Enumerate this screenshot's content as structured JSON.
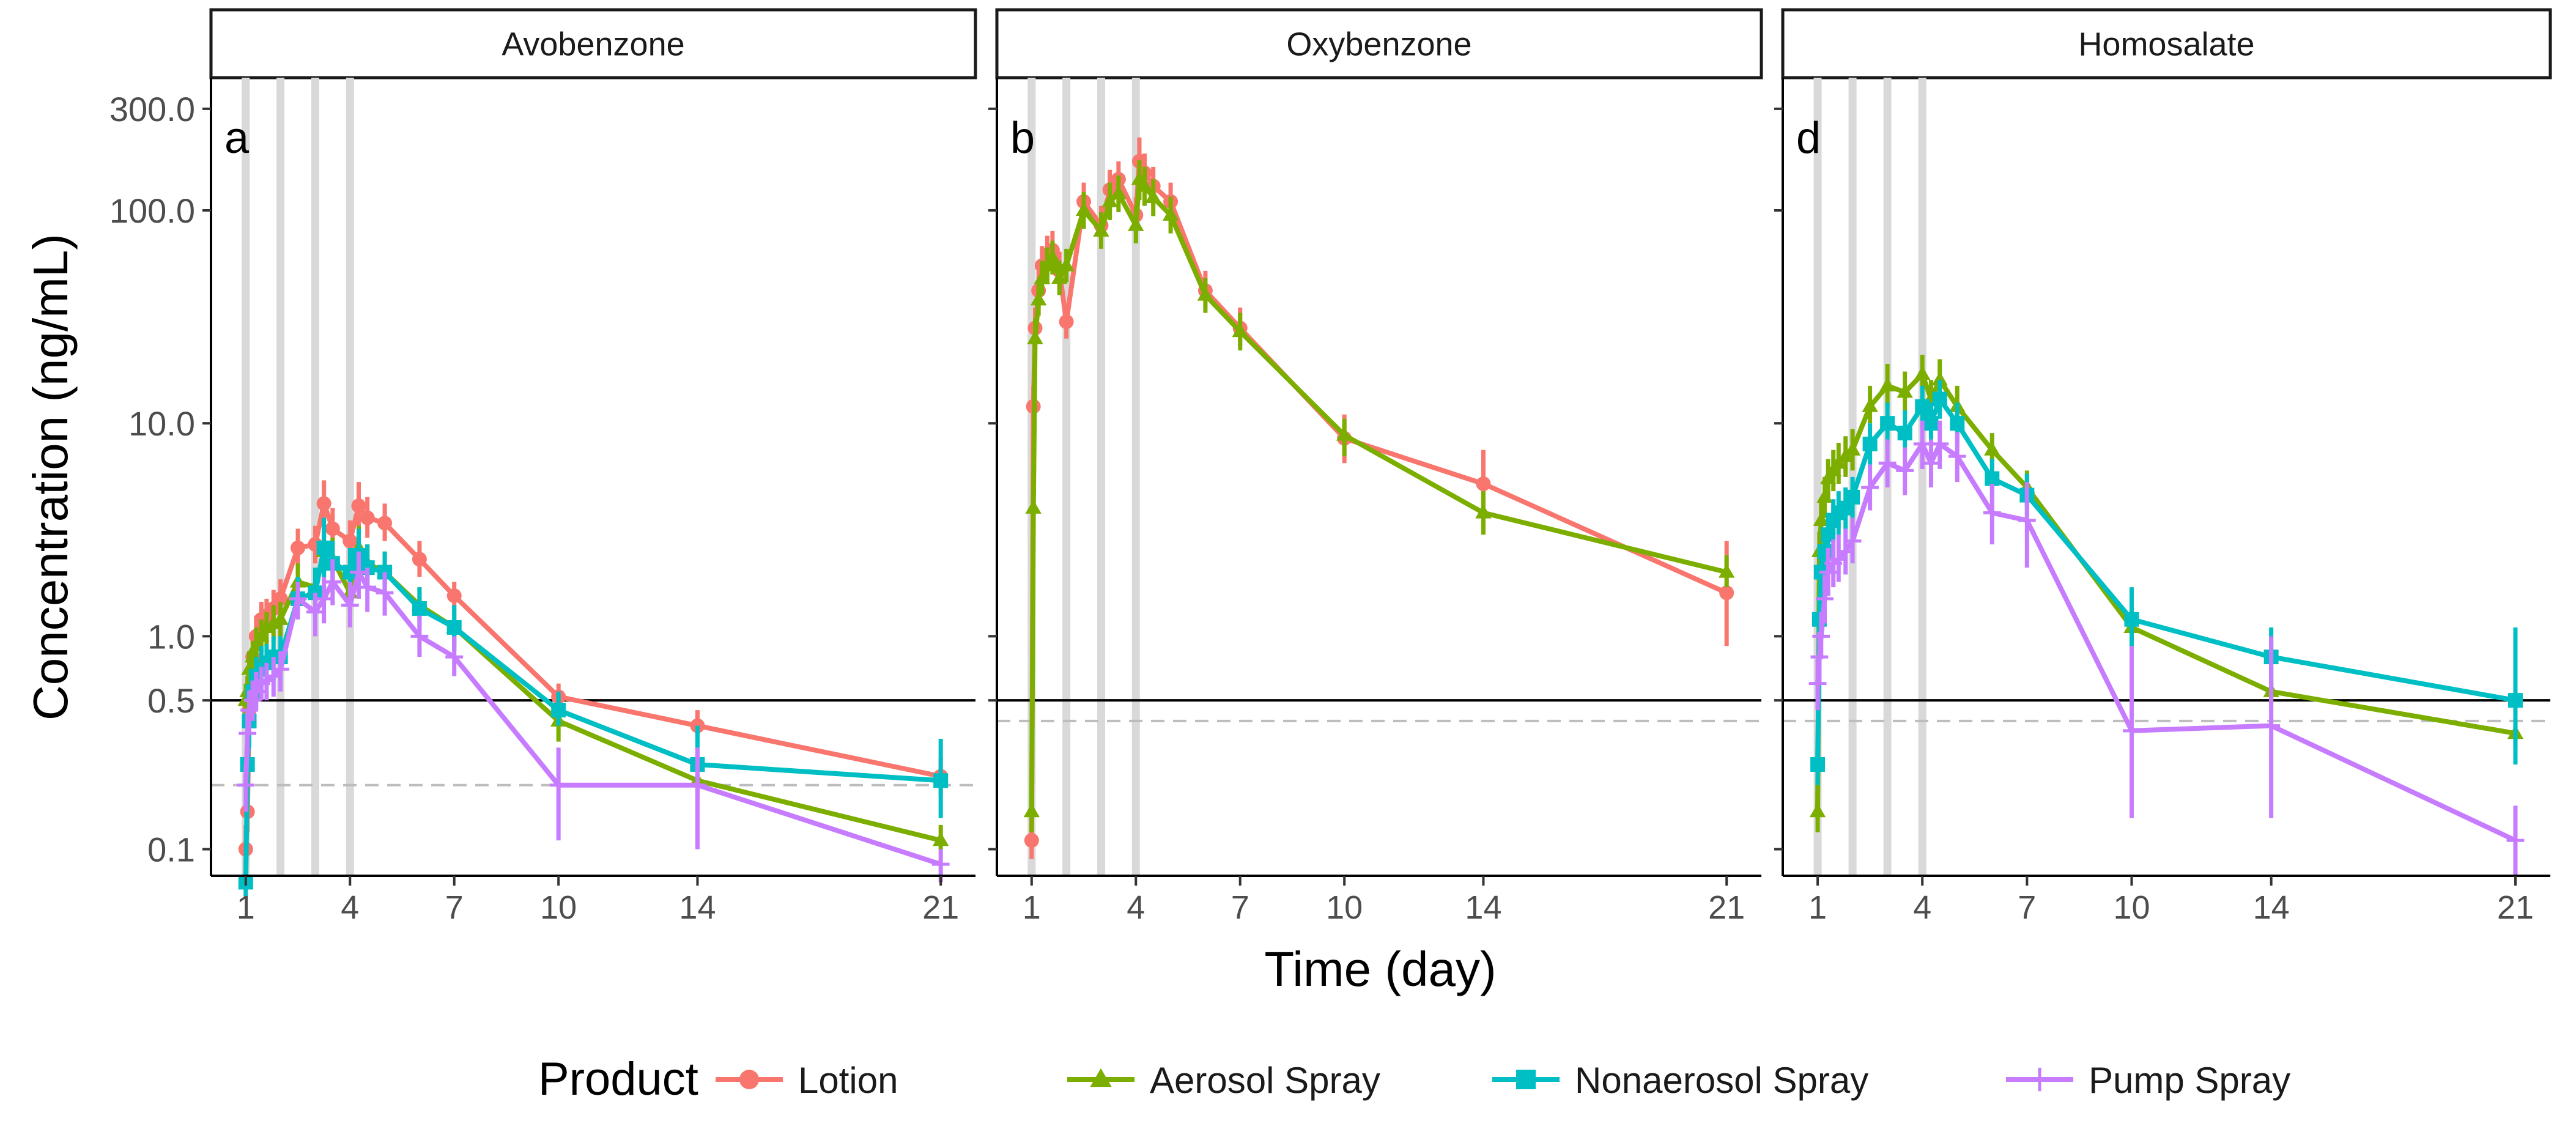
{
  "chart_data": {
    "type": "line",
    "ylabel": "Concentration (ng/mL)",
    "xlabel": "Time (day)",
    "yscale": "log",
    "ylim": [
      0.075,
      420
    ],
    "xlim": [
      0,
      22
    ],
    "yticks": [
      0.1,
      0.5,
      1.0,
      10.0,
      100.0,
      300.0
    ],
    "ytick_labels": [
      "0.1",
      "0.5",
      "1.0",
      "10.0",
      "100.0",
      "300.0"
    ],
    "xticks": [
      1,
      4,
      7,
      10,
      14,
      21
    ],
    "xtick_labels": [
      "1",
      "4",
      "7",
      "10",
      "14",
      "21"
    ],
    "grid": false,
    "legend": {
      "title": "Product",
      "position": "bottom",
      "entries": [
        {
          "name": "Lotion",
          "color": "#F8766D",
          "marker": "circle"
        },
        {
          "name": "Aerosol Spray",
          "color": "#7CAE00",
          "marker": "triangle"
        },
        {
          "name": "Nonaerosol Spray",
          "color": "#00BFC4",
          "marker": "square"
        },
        {
          "name": "Pump Spray",
          "color": "#C77CFF",
          "marker": "plus"
        }
      ]
    },
    "dose_days": [
      1,
      2,
      3,
      4
    ],
    "panels": [
      {
        "strip": "Avobenzone",
        "tag": "a",
        "ref_solid": 0.5,
        "ref_dashed": 0.2,
        "series": [
          {
            "name": "Lotion",
            "x": [
              1,
              1.05,
              1.1,
              1.2,
              1.3,
              1.45,
              1.6,
              1.8,
              2,
              2.5,
              3,
              3.25,
              3.5,
              4,
              4.25,
              4.5,
              5,
              6,
              7,
              10,
              14,
              21
            ],
            "y": [
              0.1,
              0.15,
              0.45,
              0.8,
              1.0,
              1.2,
              1.25,
              1.35,
              1.5,
              2.6,
              2.7,
              4.2,
              3.2,
              2.8,
              4.1,
              3.6,
              3.4,
              2.3,
              1.55,
              0.52,
              0.38,
              0.22
            ],
            "err_lo": [
              0.08,
              0.12,
              0.35,
              0.6,
              0.8,
              1.0,
              1.05,
              1.1,
              1.2,
              2.1,
              2.2,
              3.2,
              2.5,
              2.2,
              3.1,
              2.9,
              2.8,
              1.9,
              1.35,
              0.45,
              0.32,
              0.18
            ],
            "err_hi": [
              0.13,
              0.2,
              0.6,
              1.0,
              1.25,
              1.45,
              1.5,
              1.65,
              1.85,
              3.2,
              3.3,
              5.4,
              4.0,
              3.5,
              5.3,
              4.5,
              4.2,
              2.8,
              1.8,
              0.6,
              0.45,
              0.27
            ]
          },
          {
            "name": "Aerosol Spray",
            "x": [
              1,
              1.05,
              1.1,
              1.2,
              1.3,
              1.45,
              1.6,
              1.8,
              2,
              2.5,
              3,
              3.25,
              3.5,
              4,
              4.25,
              4.5,
              5,
              6,
              7,
              10,
              14,
              21
            ],
            "y": [
              0.5,
              0.55,
              0.7,
              0.8,
              0.9,
              1.0,
              1.1,
              1.15,
              1.2,
              1.8,
              1.7,
              2.5,
              2.3,
              1.6,
              2.6,
              2.2,
              2.0,
              1.4,
              1.1,
              0.4,
              0.21,
              0.11
            ],
            "err_lo": [
              0.4,
              0.45,
              0.55,
              0.65,
              0.7,
              0.8,
              0.9,
              0.95,
              1.0,
              1.5,
              1.4,
              1.9,
              1.8,
              1.3,
              2.0,
              1.8,
              1.6,
              1.2,
              0.9,
              0.32,
              0.17,
              0.1
            ],
            "err_hi": [
              0.6,
              0.65,
              0.85,
              0.95,
              1.1,
              1.2,
              1.3,
              1.4,
              1.45,
              2.2,
              2.1,
              3.2,
              2.9,
              1.95,
              3.3,
              2.7,
              2.5,
              1.7,
              1.35,
              0.5,
              0.26,
              0.13
            ]
          },
          {
            "name": "Nonaerosol Spray",
            "x": [
              1,
              1.05,
              1.1,
              1.2,
              1.3,
              1.45,
              1.6,
              1.8,
              2,
              2.5,
              3,
              3.25,
              3.5,
              4,
              4.25,
              4.5,
              5,
              6,
              7,
              10,
              14,
              21
            ],
            "y": [
              0.07,
              0.25,
              0.4,
              0.55,
              0.65,
              0.7,
              0.75,
              0.8,
              0.8,
              1.5,
              1.6,
              2.6,
              2.2,
              2.0,
              2.4,
              2.1,
              2.0,
              1.35,
              1.1,
              0.45,
              0.25,
              0.21
            ],
            "err_lo": [
              0.06,
              0.2,
              0.3,
              0.42,
              0.5,
              0.55,
              0.6,
              0.62,
              0.62,
              1.2,
              1.2,
              1.9,
              1.7,
              1.5,
              1.8,
              1.7,
              1.6,
              1.1,
              0.85,
              0.38,
              0.19,
              0.14
            ],
            "err_hi": [
              0.09,
              0.3,
              0.5,
              0.7,
              0.8,
              0.9,
              0.92,
              1.0,
              1.0,
              1.9,
              2.1,
              3.6,
              2.8,
              2.6,
              3.2,
              2.7,
              2.5,
              1.7,
              1.4,
              0.55,
              0.38,
              0.33
            ]
          },
          {
            "name": "Pump Spray",
            "x": [
              1,
              1.05,
              1.1,
              1.2,
              1.3,
              1.45,
              1.6,
              1.8,
              2,
              2.5,
              3,
              3.25,
              3.5,
              4,
              4.25,
              4.5,
              5,
              6,
              7,
              10,
              14,
              21
            ],
            "y": [
              0.2,
              0.35,
              0.45,
              0.5,
              0.55,
              0.6,
              0.62,
              0.65,
              0.7,
              1.5,
              1.3,
              1.5,
              1.8,
              1.4,
              2.0,
              1.7,
              1.6,
              1.0,
              0.8,
              0.2,
              0.2,
              0.085
            ],
            "err_lo": [
              0.15,
              0.28,
              0.35,
              0.4,
              0.45,
              0.5,
              0.5,
              0.52,
              0.55,
              1.2,
              1.0,
              1.15,
              1.4,
              1.1,
              1.5,
              1.3,
              1.25,
              0.8,
              0.65,
              0.11,
              0.1,
              0.07
            ],
            "err_hi": [
              0.25,
              0.45,
              0.55,
              0.62,
              0.68,
              0.72,
              0.75,
              0.8,
              0.85,
              1.8,
              1.6,
              1.9,
              2.3,
              1.8,
              2.5,
              2.1,
              2.0,
              1.25,
              1.0,
              0.3,
              0.3,
              0.1
            ]
          }
        ]
      },
      {
        "strip": "Oxybenzone",
        "tag": "b",
        "ref_solid": 0.5,
        "ref_dashed": 0.4,
        "series": [
          {
            "name": "Lotion",
            "x": [
              1,
              1.05,
              1.1,
              1.2,
              1.3,
              1.45,
              1.6,
              1.8,
              2,
              2.5,
              3,
              3.25,
              3.5,
              4,
              4.1,
              4.25,
              4.5,
              5,
              6,
              7,
              10,
              14,
              21
            ],
            "y": [
              0.11,
              12,
              28,
              42,
              55,
              62,
              65,
              52,
              30,
              110,
              85,
              125,
              140,
              95,
              170,
              150,
              130,
              110,
              42,
              28,
              8.5,
              5.2,
              1.6
            ],
            "err_lo": [
              0.09,
              10,
              23,
              35,
              45,
              50,
              52,
              42,
              25,
              90,
              70,
              100,
              115,
              78,
              130,
              120,
              105,
              90,
              35,
              23,
              6.5,
              3.6,
              0.9
            ],
            "err_hi": [
              0.13,
              15,
              35,
              52,
              68,
              76,
              80,
              64,
              36,
              135,
              105,
              155,
              170,
              115,
              220,
              185,
              160,
              135,
              52,
              35,
              11,
              7.5,
              2.8
            ]
          },
          {
            "name": "Aerosol Spray",
            "x": [
              1,
              1.05,
              1.1,
              1.2,
              1.3,
              1.45,
              1.6,
              1.8,
              2,
              2.5,
              3,
              3.25,
              3.5,
              4,
              4.1,
              4.25,
              4.5,
              5,
              6,
              7,
              10,
              14,
              21
            ],
            "y": [
              0.15,
              4.0,
              25,
              38,
              48,
              55,
              60,
              48,
              55,
              100,
              80,
              110,
              120,
              85,
              140,
              130,
              115,
              95,
              40,
              27,
              8.8,
              3.8,
              2.0
            ],
            "err_lo": [
              0.12,
              3.0,
              20,
              32,
              40,
              45,
              50,
              40,
              46,
              82,
              66,
              90,
              98,
              70,
              112,
              105,
              94,
              78,
              33,
              22,
              7.0,
              3.0,
              1.7
            ],
            "err_hi": [
              0.18,
              5.0,
              31,
              46,
              58,
              67,
              72,
              58,
              66,
              122,
              98,
              135,
              146,
              104,
              172,
              160,
              140,
              116,
              48,
              33,
              10.5,
              4.8,
              2.4
            ]
          }
        ]
      },
      {
        "strip": "Homosalate",
        "tag": "d",
        "ref_solid": 0.5,
        "ref_dashed": 0.4,
        "series": [
          {
            "name": "Aerosol Spray",
            "x": [
              1,
              1.05,
              1.1,
              1.2,
              1.3,
              1.45,
              1.6,
              1.8,
              2,
              2.5,
              3,
              3.5,
              4,
              4.25,
              4.5,
              5,
              6,
              7,
              10,
              14,
              21
            ],
            "y": [
              0.15,
              2.5,
              3.5,
              4.5,
              5.5,
              6.0,
              6.5,
              7.0,
              7.5,
              12,
              15,
              14,
              17,
              13,
              16,
              12,
              7.5,
              5.0,
              1.1,
              0.55,
              0.35
            ],
            "err_lo": [
              0.12,
              2.0,
              2.8,
              3.6,
              4.3,
              4.8,
              5.2,
              5.6,
              6.0,
              10,
              12,
              11,
              13,
              10.5,
              13,
              10,
              6.2,
              4.1,
              0.95,
              0.48,
              0.3
            ],
            "err_hi": [
              0.18,
              3.1,
              4.4,
              5.6,
              6.8,
              7.5,
              8.1,
              8.7,
              9.4,
              15,
              19,
              17.5,
              21,
              16,
              20,
              15,
              9.0,
              6.0,
              1.3,
              0.62,
              0.4
            ]
          },
          {
            "name": "Nonaerosol Spray",
            "x": [
              1,
              1.05,
              1.1,
              1.2,
              1.3,
              1.45,
              1.6,
              1.8,
              2,
              2.5,
              3,
              3.5,
              4,
              4.25,
              4.5,
              5,
              6,
              7,
              10,
              14,
              21
            ],
            "y": [
              0.25,
              1.2,
              2.0,
              2.5,
              3.0,
              3.5,
              3.8,
              4.0,
              4.5,
              8.0,
              10,
              9.0,
              12,
              10,
              13,
              10,
              5.5,
              4.6,
              1.2,
              0.8,
              0.5
            ],
            "err_lo": [
              0.2,
              0.95,
              1.6,
              2.0,
              2.4,
              2.8,
              3.0,
              3.2,
              3.6,
              6.4,
              8.0,
              7.0,
              9.5,
              8.0,
              10.5,
              7.8,
              4.3,
              3.6,
              0.9,
              0.56,
              0.25
            ],
            "err_hi": [
              0.3,
              1.5,
              2.5,
              3.1,
              3.8,
              4.4,
              4.8,
              5.0,
              5.6,
              10,
              12.5,
              11.5,
              15,
              12.5,
              16,
              12.5,
              6.8,
              5.8,
              1.7,
              1.1,
              1.1
            ]
          },
          {
            "name": "Pump Spray",
            "x": [
              1,
              1.05,
              1.1,
              1.2,
              1.3,
              1.45,
              1.6,
              1.8,
              2,
              2.5,
              3,
              3.5,
              4,
              4.25,
              4.5,
              5,
              6,
              7,
              10,
              14,
              21
            ],
            "y": [
              0.6,
              0.8,
              1.0,
              1.5,
              2.0,
              2.2,
              2.3,
              2.5,
              2.8,
              5.0,
              6.5,
              6.0,
              8.0,
              6.5,
              8.0,
              7.0,
              3.8,
              3.5,
              0.36,
              0.38,
              0.11
            ],
            "err_lo": [
              0.45,
              0.6,
              0.78,
              1.15,
              1.55,
              1.7,
              1.8,
              1.95,
              2.2,
              3.9,
              5.0,
              4.6,
              6.1,
              5.0,
              6.1,
              5.3,
              2.7,
              2.1,
              0.14,
              0.14,
              0.075
            ],
            "err_hi": [
              0.78,
              1.05,
              1.3,
              1.95,
              2.6,
              2.85,
              3.0,
              3.2,
              3.6,
              6.4,
              8.4,
              7.7,
              10.3,
              8.4,
              10.3,
              9.1,
              5.2,
              5.3,
              0.9,
              1.0,
              0.16
            ]
          }
        ]
      }
    ]
  }
}
